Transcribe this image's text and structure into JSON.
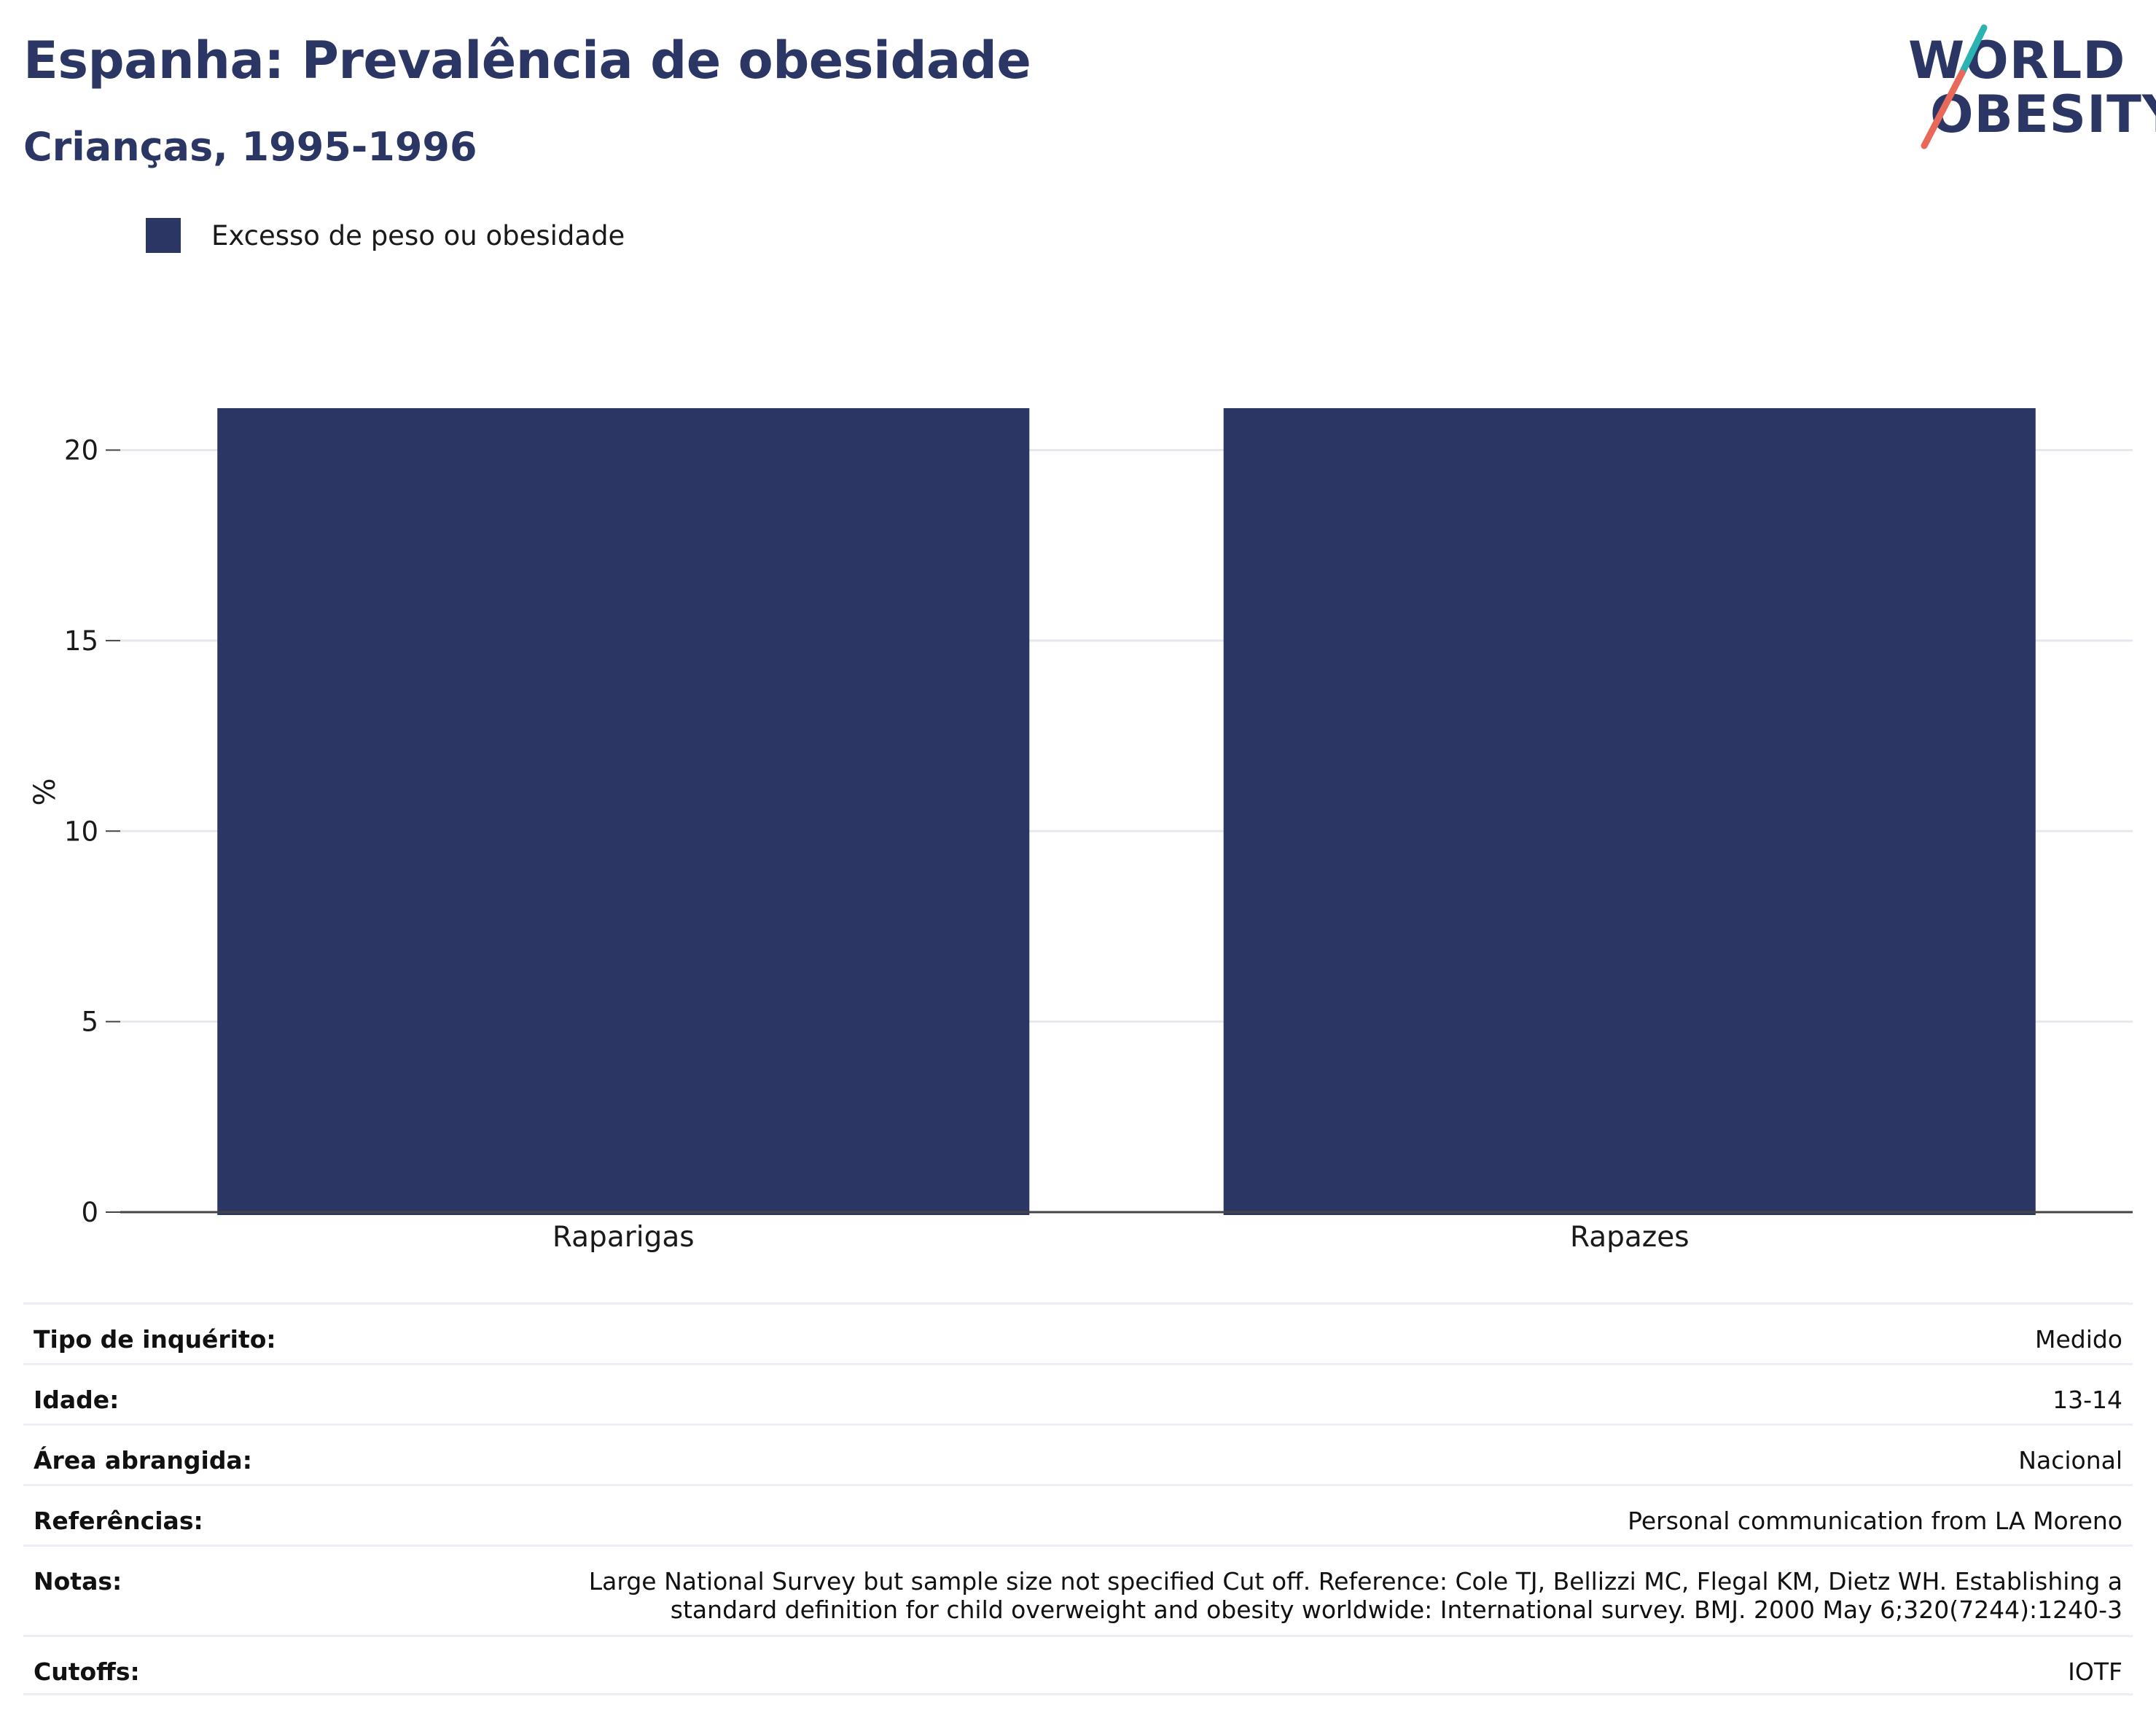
{
  "header": {
    "title": "Espanha: Prevalência de obesidade",
    "subtitle": "Crianças, 1995-1996"
  },
  "logo": {
    "line1": "WORLD",
    "line2": "OBESITY",
    "colors": {
      "text": "#2b3664",
      "slash_top": "#2ab3b1",
      "slash_bottom": "#e8685a"
    }
  },
  "legend": {
    "items": [
      {
        "label": "Excesso de peso ou obesidade",
        "color": "#2b3664"
      }
    ]
  },
  "chart_data": {
    "type": "bar",
    "categories": [
      "Raparigas",
      "Rapazes"
    ],
    "series": [
      {
        "name": "Excesso de peso ou obesidade",
        "values": [
          21.1,
          21.1
        ],
        "color": "#2b3664"
      }
    ],
    "xlabel": "",
    "ylabel": "%",
    "ylim": [
      0,
      21.1
    ],
    "yticks": [
      "0",
      "5",
      "10",
      "15",
      "20"
    ],
    "grid": true,
    "legend_position": "top-left"
  },
  "info_table": [
    {
      "key": "Tipo de inquérito:",
      "value": "Medido"
    },
    {
      "key": "Idade:",
      "value": "13-14"
    },
    {
      "key": "Área abrangida:",
      "value": "Nacional"
    },
    {
      "key": "Referências:",
      "value": "Personal communication from LA Moreno"
    },
    {
      "key": "Notas:",
      "value_lines": [
        "Large National Survey but sample size not specified Cut off. Reference: Cole TJ, Bellizzi MC, Flegal KM, Dietz WH. Establishing a",
        "standard definition for child overweight and obesity worldwide: International survey. BMJ. 2000 May 6;320(7244):1240-3"
      ]
    },
    {
      "key": "Cutoffs:",
      "value": "IOTF"
    }
  ]
}
